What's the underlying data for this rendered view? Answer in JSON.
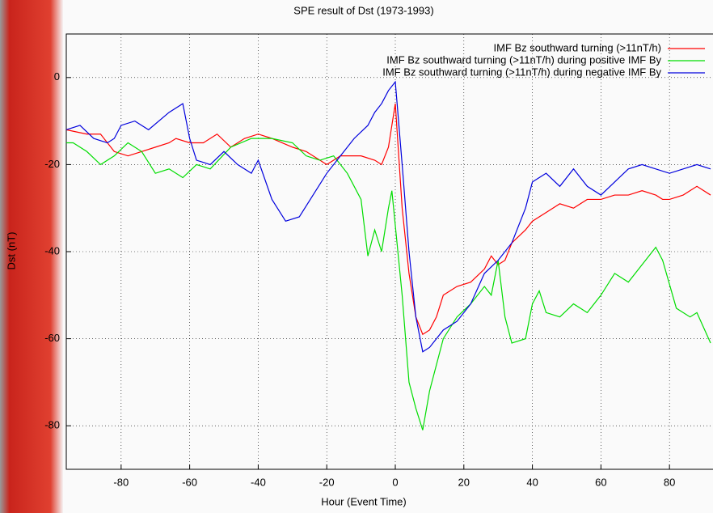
{
  "chart_data": {
    "type": "line",
    "title": "SPE result of Dst (1973-1993)",
    "x_label": "Hour (Event Time)",
    "y_label": "Dst (nT)",
    "xlim": [
      -96,
      96
    ],
    "ylim": [
      -90,
      10
    ],
    "xticks": [
      -80,
      -60,
      -40,
      -20,
      0,
      20,
      40,
      60,
      80
    ],
    "yticks": [
      0,
      -20,
      -40,
      -60,
      -80
    ],
    "grid": true,
    "legend": "upper right",
    "series": [
      {
        "name": "IMF Bz southward turning (>11nT/h)",
        "color": "#ff0000",
        "x": [
          -96,
          -90,
          -86,
          -82,
          -78,
          -74,
          -70,
          -66,
          -64,
          -60,
          -56,
          -52,
          -48,
          -44,
          -40,
          -36,
          -30,
          -26,
          -22,
          -20,
          -16,
          -12,
          -10,
          -6,
          -4,
          -2,
          0,
          2,
          4,
          6,
          8,
          10,
          12,
          14,
          18,
          22,
          26,
          28,
          30,
          32,
          34,
          38,
          40,
          44,
          48,
          52,
          56,
          60,
          64,
          68,
          72,
          76,
          78,
          80,
          84,
          88,
          92
        ],
        "values": [
          -12,
          -13,
          -13,
          -17,
          -18,
          -17,
          -16,
          -15,
          -14,
          -15,
          -15,
          -13,
          -16,
          -14,
          -13,
          -14,
          -16,
          -17,
          -19,
          -20,
          -18,
          -18,
          -18,
          -19,
          -20,
          -16,
          -6,
          -30,
          -45,
          -55,
          -59,
          -58,
          -55,
          -50,
          -48,
          -47,
          -44,
          -41,
          -43,
          -42,
          -38,
          -35,
          -33,
          -31,
          -29,
          -30,
          -28,
          -28,
          -27,
          -27,
          -26,
          -27,
          -28,
          -28,
          -27,
          -25,
          -27
        ]
      },
      {
        "name": "IMF Bz southward turning (>11nT/h) during positive IMF By",
        "color": "#00dd00",
        "x": [
          -96,
          -94,
          -90,
          -86,
          -82,
          -78,
          -74,
          -70,
          -66,
          -62,
          -58,
          -54,
          -48,
          -42,
          -36,
          -30,
          -26,
          -22,
          -18,
          -14,
          -10,
          -8,
          -6,
          -4,
          -2,
          -1,
          2,
          4,
          6,
          8,
          10,
          14,
          18,
          22,
          26,
          28,
          30,
          32,
          34,
          38,
          40,
          42,
          44,
          48,
          52,
          56,
          60,
          64,
          68,
          72,
          76,
          78,
          82,
          86,
          88,
          92
        ],
        "values": [
          -15,
          -15,
          -17,
          -20,
          -18,
          -15,
          -17,
          -22,
          -21,
          -23,
          -20,
          -21,
          -16,
          -14,
          -14,
          -15,
          -18,
          -19,
          -18,
          -22,
          -28,
          -41,
          -35,
          -40,
          -30,
          -26,
          -50,
          -70,
          -76,
          -81,
          -72,
          -60,
          -55,
          -52,
          -48,
          -50,
          -42,
          -55,
          -61,
          -60,
          -52,
          -49,
          -54,
          -55,
          -52,
          -54,
          -50,
          -45,
          -47,
          -43,
          -39,
          -42,
          -53,
          -55,
          -54,
          -61
        ]
      },
      {
        "name": "IMF Bz southward turning (>11nT/h) during negative IMF By",
        "color": "#0000dd",
        "x": [
          -96,
          -92,
          -88,
          -84,
          -82,
          -80,
          -76,
          -72,
          -66,
          -62,
          -60,
          -58,
          -54,
          -50,
          -46,
          -42,
          -40,
          -36,
          -32,
          -28,
          -24,
          -20,
          -16,
          -12,
          -8,
          -6,
          -4,
          -2,
          0,
          2,
          4,
          6,
          8,
          10,
          12,
          14,
          18,
          22,
          26,
          30,
          34,
          38,
          40,
          44,
          48,
          52,
          56,
          60,
          64,
          68,
          72,
          76,
          80,
          84,
          88,
          92
        ],
        "values": [
          -12,
          -11,
          -14,
          -15,
          -14,
          -11,
          -10,
          -12,
          -8,
          -6,
          -14,
          -19,
          -20,
          -17,
          -20,
          -22,
          -19,
          -28,
          -33,
          -32,
          -27,
          -22,
          -18,
          -14,
          -11,
          -8,
          -6,
          -3,
          -1,
          -20,
          -40,
          -55,
          -63,
          -62,
          -60,
          -58,
          -56,
          -52,
          -45,
          -42,
          -38,
          -30,
          -24,
          -22,
          -25,
          -21,
          -25,
          -27,
          -24,
          -21,
          -20,
          -21,
          -22,
          -21,
          -20,
          -21
        ]
      }
    ]
  }
}
